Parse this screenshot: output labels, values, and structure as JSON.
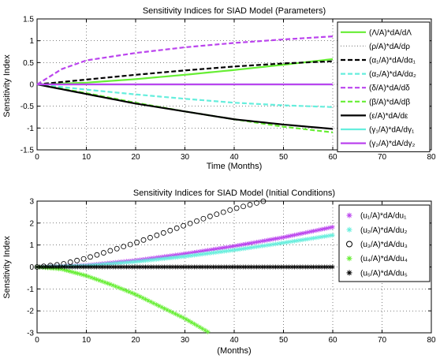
{
  "chart_data": [
    {
      "type": "line",
      "title": "Sensitivity Indices for SIAD Model (Parameters)",
      "xlabel": "Time (Months)",
      "ylabel": "Sensitivity Index",
      "xlim": [
        0,
        80
      ],
      "ylim": [
        -1.5,
        1.5
      ],
      "xticks": [
        "0",
        "10",
        "20",
        "30",
        "40",
        "50",
        "60",
        "70",
        "80"
      ],
      "yticks": [
        "-1.5",
        "-1",
        "-0.5",
        "0",
        "0.5",
        "1",
        "1.5"
      ],
      "grid": true,
      "legend_position": "top-right",
      "series": [
        {
          "name": "(Λ/A)*dA/dΛ",
          "color": "#66ee33",
          "style": "solid",
          "x": [
            0,
            10,
            20,
            30,
            40,
            50,
            60
          ],
          "y": [
            0,
            0.04,
            0.12,
            0.22,
            0.33,
            0.45,
            0.58
          ]
        },
        {
          "name": "(ρ/A)*dA/dρ",
          "color": "#888888",
          "style": "dotted",
          "x": [
            0,
            10,
            20,
            30,
            40,
            50,
            60
          ],
          "y": [
            0,
            0,
            0,
            0,
            0,
            0,
            0
          ]
        },
        {
          "name": "(α₁/A)*dA/dα₁",
          "color": "#000000",
          "style": "dashed",
          "x": [
            0,
            10,
            20,
            30,
            40,
            50,
            60
          ],
          "y": [
            0,
            0.11,
            0.22,
            0.32,
            0.41,
            0.48,
            0.53
          ]
        },
        {
          "name": "(α₂/A)*dA/dα₂",
          "color": "#66eedd",
          "style": "dashed",
          "x": [
            0,
            10,
            20,
            30,
            40,
            50,
            60
          ],
          "y": [
            0,
            -0.12,
            -0.23,
            -0.33,
            -0.42,
            -0.48,
            -0.52
          ]
        },
        {
          "name": "(δ/A)*dA/dδ",
          "color": "#bb44ee",
          "style": "dashed",
          "x": [
            0,
            5,
            10,
            20,
            30,
            40,
            50,
            60
          ],
          "y": [
            0,
            0.35,
            0.55,
            0.72,
            0.85,
            0.95,
            1.03,
            1.1
          ]
        },
        {
          "name": "(β/A)*dA/dβ",
          "color": "#66ee33",
          "style": "dashed",
          "x": [
            0,
            10,
            20,
            30,
            40,
            50,
            60
          ],
          "y": [
            0,
            -0.2,
            -0.42,
            -0.62,
            -0.8,
            -0.97,
            -1.1
          ]
        },
        {
          "name": "(ε/A)*dA/dε",
          "color": "#000000",
          "style": "solid",
          "x": [
            0,
            10,
            20,
            30,
            40,
            50,
            60
          ],
          "y": [
            0,
            -0.22,
            -0.44,
            -0.62,
            -0.8,
            -0.92,
            -1.02
          ]
        },
        {
          "name": "(γ₁/A)*dA/dγ₁",
          "color": "#66eedd",
          "style": "solid",
          "x": [
            0,
            10,
            20,
            30,
            40,
            50,
            60
          ],
          "y": [
            0,
            0,
            0,
            0,
            0,
            0,
            0
          ]
        },
        {
          "name": "(γ₂/A)*dA/dγ₂",
          "color": "#bb44ee",
          "style": "solid",
          "x": [
            0,
            10,
            20,
            30,
            40,
            50,
            60
          ],
          "y": [
            0,
            0,
            0,
            0,
            0,
            0,
            0
          ]
        }
      ]
    },
    {
      "type": "scatter",
      "title": "Sensitivity Indices for SIAD Model (Initial Conditions)",
      "xlabel": "(Months)",
      "ylabel": "Sensitivity Index",
      "xlim": [
        0,
        80
      ],
      "ylim": [
        -3,
        3
      ],
      "xticks": [
        "0",
        "10",
        "20",
        "30",
        "40",
        "50",
        "60",
        "70",
        "80"
      ],
      "yticks": [
        "-3",
        "-2",
        "-1",
        "0",
        "1",
        "2",
        "3"
      ],
      "grid": true,
      "legend_position": "top-right",
      "series": [
        {
          "name": "(u₁/A)*dA/du₁",
          "color": "#bb44ee",
          "marker": "star",
          "x": [
            0,
            10,
            20,
            30,
            40,
            50,
            60
          ],
          "y": [
            0,
            0.08,
            0.3,
            0.6,
            0.95,
            1.35,
            1.82
          ]
        },
        {
          "name": "(u₂/A)*dA/du₂",
          "color": "#66eedd",
          "marker": "star",
          "x": [
            0,
            10,
            20,
            30,
            40,
            50,
            60
          ],
          "y": [
            0,
            0.06,
            0.24,
            0.48,
            0.77,
            1.1,
            1.45
          ]
        },
        {
          "name": "(u₃/A)*dA/du₃",
          "color": "#000000",
          "marker": "circle",
          "x": [
            0,
            5,
            10,
            15,
            20,
            25,
            30,
            35,
            40,
            46
          ],
          "y": [
            0,
            0.12,
            0.4,
            0.75,
            1.1,
            1.5,
            1.9,
            2.3,
            2.65,
            3.0
          ]
        },
        {
          "name": "(u₄/A)*dA/du₄",
          "color": "#66ee33",
          "marker": "star",
          "x": [
            0,
            5,
            10,
            15,
            20,
            25,
            30,
            35
          ],
          "y": [
            0,
            -0.1,
            -0.4,
            -0.8,
            -1.25,
            -1.8,
            -2.35,
            -3.0
          ]
        },
        {
          "name": "(u₅/A)*dA/du₅",
          "color": "#000000",
          "marker": "star",
          "x": [
            0,
            10,
            20,
            30,
            40,
            50,
            60
          ],
          "y": [
            0,
            0,
            0,
            0,
            0,
            0,
            0
          ]
        }
      ]
    }
  ]
}
